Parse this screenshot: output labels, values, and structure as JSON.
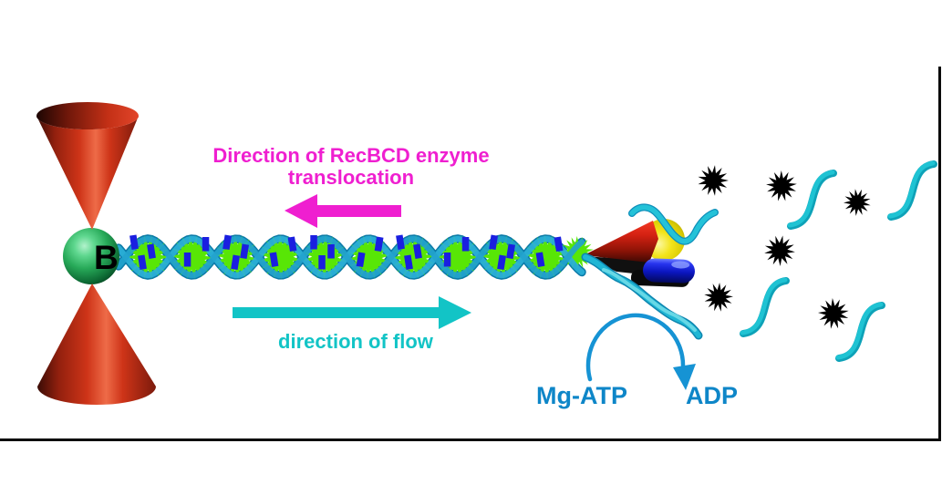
{
  "figure": {
    "labels": {
      "translocation_line1": "Direction of RecBCD enzyme",
      "translocation_line2": "translocation",
      "flow_direction": "direction of flow",
      "bead": "B",
      "substrate": "Mg-ATP",
      "product": "ADP"
    },
    "colors": {
      "magenta": "#ef1fd0",
      "cyan": "#12c4c6",
      "reaction_blue": "#0e86c8",
      "arc_blue": "#1693d4",
      "helix_cyan": "#2bb0d8",
      "helix_cyan_dark": "#0c7aa8",
      "helix_highlight": "#73dcec",
      "ssdna_cyan": "#1fc3d3",
      "ssdna_dark": "#0ea2b8",
      "burst_green": "#58e606",
      "dye_blue": "#1a1fe0",
      "fluorophore_black": "#000000",
      "trap_red": "#ce3418",
      "bead_green": "#27a958",
      "enzyme_yellow": "#f3e41a",
      "enzyme_blue": "#0b16c0"
    }
  }
}
